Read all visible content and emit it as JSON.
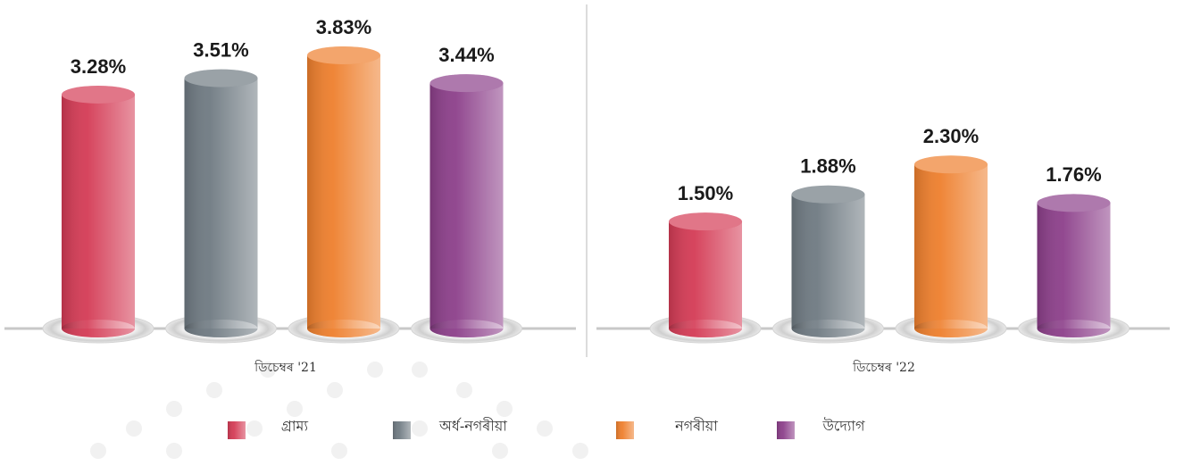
{
  "chart_data": {
    "type": "bar",
    "categories": [
      "ডিচেম্বৰ '21",
      "ডিচেম্বৰ '22"
    ],
    "series": [
      {
        "name": "গ্ৰাম্য",
        "color": "#d43b55",
        "values": [
          3.28,
          1.5
        ],
        "value_labels": [
          "3.28%",
          "1.50%"
        ]
      },
      {
        "name": "অৰ্ধ-নগৰীয়া",
        "color": "#6f7a82",
        "values": [
          3.51,
          1.88
        ],
        "value_labels": [
          "3.51%",
          "1.88%"
        ]
      },
      {
        "name": "নগৰীয়া",
        "color": "#ee7f2d",
        "values": [
          3.83,
          2.3
        ],
        "value_labels": [
          "3.83%",
          "2.30%"
        ]
      },
      {
        "name": "উদ্যোগ",
        "color": "#8c3f8a",
        "values": [
          3.44,
          1.76
        ],
        "value_labels": [
          "3.44%",
          "1.76%"
        ]
      }
    ]
  }
}
